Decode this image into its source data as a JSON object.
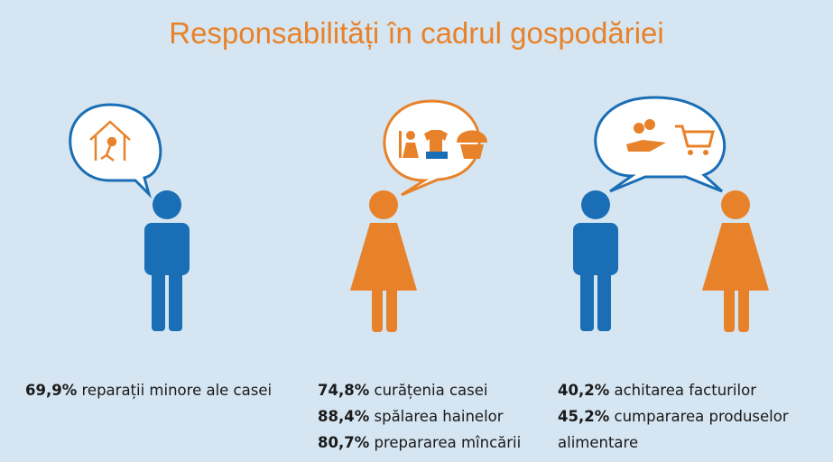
{
  "title": "Responsabilități în cadrul gospodăriei",
  "panels": [
    {
      "items": [
        {
          "value": "69,9%",
          "label": "reparații minore ale casei"
        }
      ]
    },
    {
      "items": [
        {
          "value": "74,8%",
          "label": "curățenia casei"
        },
        {
          "value": "88,4%",
          "label": "spălarea hainelor"
        },
        {
          "value": "80,7%",
          "label": "prepararea mîncării"
        }
      ]
    },
    {
      "items": [
        {
          "value": "40,2%",
          "label": "achitarea facturilor"
        },
        {
          "value": "45,2%",
          "label": "cumpararea produselor alimentare"
        }
      ]
    }
  ]
}
